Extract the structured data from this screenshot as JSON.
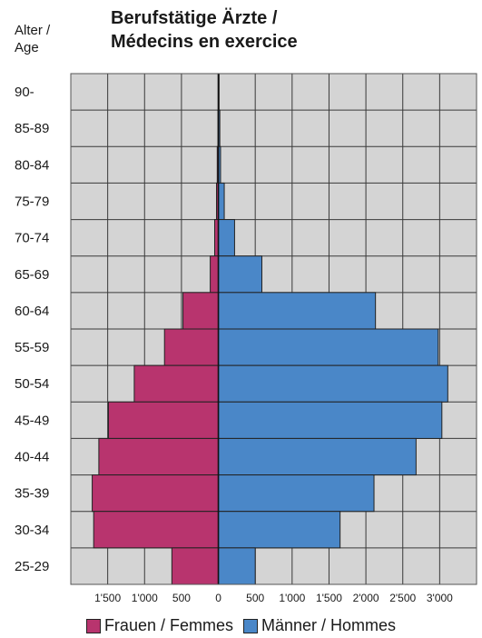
{
  "title": {
    "line1": "Berufstätige Ärzte /",
    "line2": "Médecins en exercice"
  },
  "age_axis_caption": {
    "line1": "Alter /",
    "line2": "Age"
  },
  "chart_data": {
    "type": "bar",
    "orientation": "horizontal-population-pyramid",
    "categories": [
      "90-",
      "85-89",
      "80-84",
      "75-79",
      "70-74",
      "65-69",
      "60-64",
      "55-59",
      "50-54",
      "45-49",
      "40-44",
      "35-39",
      "30-34",
      "25-29"
    ],
    "series": [
      {
        "name": "Frauen / Femmes",
        "color": "#b8346e",
        "values": [
          2,
          5,
          15,
          25,
          50,
          110,
          480,
          730,
          1140,
          1490,
          1620,
          1710,
          1690,
          630
        ]
      },
      {
        "name": "Männer / Hommes",
        "color": "#4a87c8",
        "values": [
          10,
          20,
          30,
          80,
          220,
          590,
          2130,
          2980,
          3110,
          3030,
          2680,
          2110,
          1650,
          500
        ]
      }
    ],
    "x_tick_labels": [
      "1'500",
      "1'000",
      "500",
      "0",
      "500",
      "1'000",
      "1'500",
      "2'000",
      "2'500",
      "3'000"
    ],
    "x_tick_values": [
      -1500,
      -1000,
      -500,
      0,
      500,
      1000,
      1500,
      2000,
      2500,
      3000
    ],
    "xlim": [
      -2000,
      3500
    ],
    "grid": true,
    "grid_background": "#d4d4d4",
    "legend_position": "bottom"
  }
}
